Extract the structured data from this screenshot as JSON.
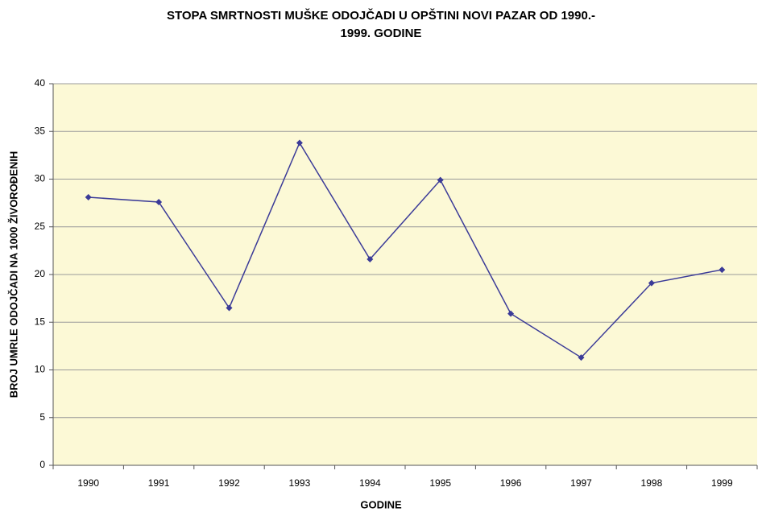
{
  "chart_data": {
    "type": "line",
    "title": [
      "STOPA SMRTNOSTI MUŠKE ODOJČADI U OPŠTINI NOVI PAZAR OD 1990.-",
      "1999. GODINE"
    ],
    "x_label": "GODINE",
    "y_label": "BROJ UMRLE ODOJČADI NA 1000 ŽIVOROĐENIH",
    "categories": [
      "1990",
      "1991",
      "1992",
      "1993",
      "1994",
      "1995",
      "1996",
      "1997",
      "1998",
      "1999"
    ],
    "values": [
      28.1,
      27.6,
      16.5,
      33.8,
      21.6,
      29.9,
      15.9,
      11.3,
      19.1,
      20.5
    ],
    "color": "#3b3b98",
    "ylim": [
      0,
      40
    ],
    "yticks": [
      0,
      5,
      10,
      15,
      20,
      25,
      30,
      35,
      40
    ],
    "grid": true
  }
}
